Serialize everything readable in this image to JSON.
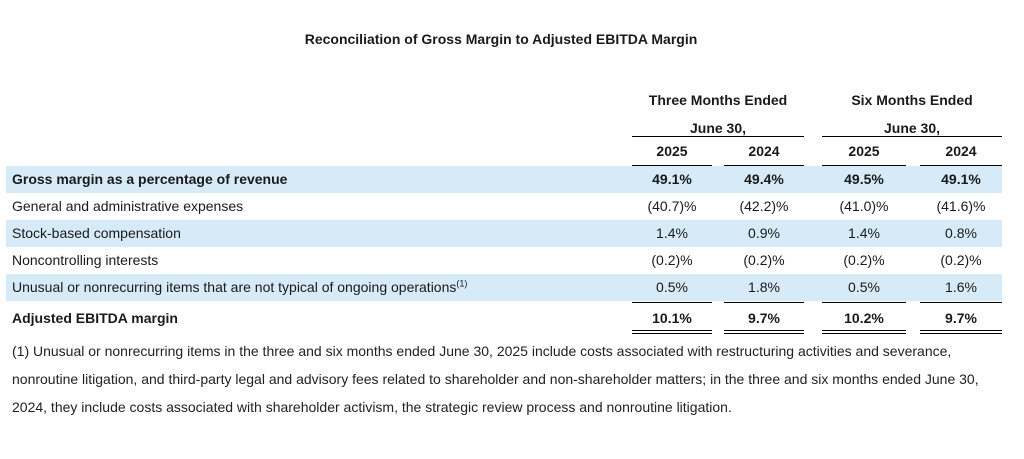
{
  "title": "Reconciliation of Gross Margin to Adjusted EBITDA Margin",
  "column_groups": [
    {
      "line1": "Three Months Ended",
      "line2": "June 30,"
    },
    {
      "line1": "Six Months Ended",
      "line2": "June 30,"
    }
  ],
  "years": [
    "2025",
    "2024",
    "2025",
    "2024"
  ],
  "rows": [
    {
      "label": "Gross margin as a percentage of revenue",
      "values": [
        "49.1%",
        "49.4%",
        "49.5%",
        "49.1%"
      ]
    },
    {
      "label": "General and administrative expenses",
      "values": [
        "(40.7)%",
        "(42.2)%",
        "(41.0)%",
        "(41.6)%"
      ]
    },
    {
      "label": "Stock-based compensation",
      "values": [
        "1.4%",
        "0.9%",
        "1.4%",
        "0.8%"
      ]
    },
    {
      "label": "Noncontrolling interests",
      "values": [
        "(0.2)%",
        "(0.2)%",
        "(0.2)%",
        "(0.2)%"
      ]
    },
    {
      "label": "Unusual or nonrecurring items that are not typical of ongoing operations",
      "sup": "(1)",
      "values": [
        "0.5%",
        "1.8%",
        "0.5%",
        "1.6%"
      ]
    },
    {
      "label": "Adjusted EBITDA margin",
      "values": [
        "10.1%",
        "9.7%",
        "10.2%",
        "9.7%"
      ]
    }
  ],
  "footnote": "(1) Unusual or nonrecurring items in the three and six months ended June 30, 2025 include costs associated with restructuring activities and severance, nonroutine litigation, and third-party legal and advisory fees related to shareholder and non-shareholder matters; in the three and six months ended June 30, 2024, they include costs associated with shareholder activism, the strategic review process and nonroutine litigation.",
  "colors": {
    "row_shade": "#d6ebf7",
    "text": "#1a1a1a"
  }
}
